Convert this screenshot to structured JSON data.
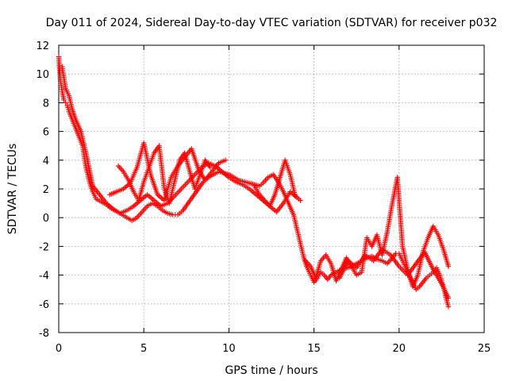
{
  "chart_data": {
    "type": "scatter",
    "title": "Day 011 of 2024, Sidereal Day-to-day VTEC variation (SDTVAR) for receiver p032",
    "xlabel": "GPS time / hours",
    "ylabel": "SDTVAR / TECUs",
    "xlim": [
      0,
      25
    ],
    "ylim": [
      -8,
      12
    ],
    "xticks": [
      0,
      5,
      10,
      15,
      20,
      25
    ],
    "yticks": [
      -8,
      -6,
      -4,
      -2,
      0,
      2,
      4,
      6,
      8,
      10,
      12
    ],
    "grid": true,
    "marker": "+",
    "series": [
      {
        "name": "main",
        "color": "#ff0000",
        "x": [
          0.0,
          0.1,
          0.2,
          0.3,
          0.4,
          0.5,
          0.6,
          0.8,
          1.0,
          1.2,
          1.4,
          1.6,
          1.8,
          2.0,
          2.2,
          2.5,
          2.8,
          3.0,
          3.3,
          3.6,
          4.0,
          4.3,
          4.6,
          4.9,
          5.2,
          5.5,
          5.8,
          6.1,
          6.4,
          6.7,
          7.0,
          7.3,
          7.6,
          7.9,
          8.2,
          8.5,
          8.8,
          9.1,
          9.4,
          9.7,
          10.0,
          10.3,
          10.6,
          10.9,
          11.2,
          11.5,
          11.8,
          12.0,
          12.3,
          12.6,
          12.9,
          13.2,
          13.5,
          13.8,
          14.0,
          14.2,
          14.4,
          14.6,
          14.8,
          15.0,
          15.2,
          15.4,
          15.6,
          15.8,
          16.0,
          16.3,
          16.6,
          16.9,
          17.2,
          17.5,
          17.8,
          18.1,
          18.4,
          18.7,
          19.0,
          19.3,
          19.6,
          19.8,
          20.0,
          20.2,
          20.4,
          20.6,
          20.8,
          21.0,
          21.2,
          21.4,
          21.6,
          21.8,
          22.0,
          22.2,
          22.4,
          22.6,
          22.8,
          22.9
        ],
        "y": [
          11.2,
          9.5,
          8.8,
          8.2,
          8.0,
          7.8,
          7.4,
          6.8,
          6.2,
          5.6,
          5.0,
          3.5,
          2.5,
          1.8,
          1.3,
          1.1,
          0.9,
          0.7,
          0.5,
          0.3,
          0.0,
          -0.2,
          0.0,
          0.4,
          0.8,
          1.0,
          0.8,
          0.5,
          0.3,
          0.2,
          0.2,
          0.5,
          1.0,
          1.5,
          2.0,
          2.5,
          2.8,
          3.0,
          3.2,
          3.1,
          3.0,
          2.8,
          2.6,
          2.5,
          2.4,
          2.3,
          2.2,
          2.4,
          2.8,
          3.0,
          2.5,
          1.8,
          1.0,
          0.2,
          -0.8,
          -1.8,
          -2.8,
          -3.5,
          -4.0,
          -4.5,
          -4.2,
          -3.8,
          -4.0,
          -4.3,
          -4.0,
          -3.8,
          -3.6,
          -3.5,
          -3.4,
          -3.2,
          -3.0,
          -2.8,
          -2.7,
          -2.9,
          -3.0,
          -3.2,
          -2.8,
          -2.5,
          -2.5,
          -3.0,
          -3.5,
          -4.0,
          -4.5,
          -5.0,
          -4.8,
          -4.5,
          -4.2,
          -4.0,
          -3.8,
          -3.5,
          -4.0,
          -4.8,
          -5.8,
          -6.2
        ]
      },
      {
        "name": "branch-a",
        "color": "#ff0000",
        "x": [
          0.2,
          0.4,
          0.6,
          0.8,
          1.0,
          1.3,
          1.6,
          2.0,
          2.4,
          2.8,
          3.2,
          3.6,
          4.0,
          4.4,
          4.8,
          5.2,
          5.6,
          6.0,
          6.4,
          6.8,
          7.2,
          7.6,
          8.0,
          8.4,
          8.8,
          9.2,
          9.6,
          10.0,
          10.4,
          10.8,
          11.2,
          11.6,
          12.0,
          12.4,
          12.8,
          13.2,
          13.6,
          14.0
        ],
        "y": [
          10.5,
          9.0,
          8.5,
          7.5,
          6.8,
          6.0,
          4.5,
          2.2,
          1.6,
          1.0,
          0.6,
          0.3,
          0.5,
          0.8,
          1.2,
          1.6,
          1.2,
          0.8,
          1.0,
          1.5,
          2.0,
          2.5,
          3.0,
          3.5,
          3.8,
          3.6,
          3.2,
          2.8,
          2.5,
          2.3,
          2.0,
          1.6,
          1.2,
          0.8,
          0.4,
          1.0,
          1.8,
          1.4
        ]
      },
      {
        "name": "branch-b",
        "color": "#ff0000",
        "x": [
          3.5,
          3.8,
          4.1,
          4.4,
          4.7,
          5.0,
          5.3,
          5.6,
          5.9,
          6.2,
          6.5,
          6.8,
          7.1,
          7.4,
          7.7,
          8.0,
          8.3,
          8.6,
          8.9
        ],
        "y": [
          3.6,
          3.2,
          2.6,
          1.8,
          1.2,
          2.5,
          3.5,
          4.5,
          5.0,
          2.0,
          1.0,
          2.5,
          4.0,
          4.5,
          3.2,
          2.0,
          3.0,
          4.0,
          3.5
        ]
      },
      {
        "name": "branch-c",
        "color": "#ff0000",
        "x": [
          3.0,
          3.4,
          3.8,
          4.2,
          4.6,
          5.0,
          5.4,
          5.8,
          6.2,
          6.6,
          7.0,
          7.4,
          7.8,
          8.2,
          8.6,
          9.0,
          9.4,
          9.8
        ],
        "y": [
          1.6,
          1.8,
          2.0,
          2.4,
          3.5,
          5.2,
          3.0,
          1.6,
          1.2,
          2.8,
          3.6,
          4.2,
          4.8,
          3.4,
          2.6,
          3.2,
          3.8,
          4.0
        ]
      },
      {
        "name": "branch-d",
        "color": "#ff0000",
        "x": [
          11.5,
          11.8,
          12.1,
          12.4,
          12.7,
          13.0,
          13.3,
          13.6,
          13.9,
          14.2
        ],
        "y": [
          2.2,
          1.6,
          1.2,
          0.8,
          1.6,
          2.8,
          4.0,
          3.0,
          1.5,
          1.2
        ]
      },
      {
        "name": "branch-e",
        "color": "#ff0000",
        "x": [
          14.5,
          14.8,
          15.1,
          15.4,
          15.7,
          16.0,
          16.3,
          16.6,
          16.9,
          17.2,
          17.5,
          17.8,
          18.1,
          18.4,
          18.7,
          19.0,
          19.3,
          19.6,
          19.9,
          20.2,
          20.5,
          20.8,
          21.1,
          21.4,
          21.7,
          22.0,
          22.3,
          22.6,
          22.9
        ],
        "y": [
          -3.0,
          -3.4,
          -4.2,
          -3.0,
          -2.6,
          -3.2,
          -4.4,
          -3.6,
          -2.8,
          -3.4,
          -4.0,
          -3.8,
          -1.4,
          -2.0,
          -1.2,
          -2.6,
          -1.0,
          1.0,
          2.8,
          -2.0,
          -3.6,
          -4.8,
          -4.0,
          -2.4,
          -1.4,
          -0.6,
          -1.2,
          -2.2,
          -3.4
        ]
      },
      {
        "name": "branch-f",
        "color": "#ff0000",
        "x": [
          16.5,
          17.0,
          17.5,
          18.0,
          18.5,
          19.0,
          19.5,
          20.0,
          20.5,
          21.0,
          21.5,
          22.0,
          22.5,
          22.9
        ],
        "y": [
          -4.2,
          -3.0,
          -3.5,
          -2.6,
          -3.0,
          -2.2,
          -2.6,
          -3.4,
          -4.0,
          -3.2,
          -2.4,
          -3.6,
          -4.6,
          -5.6
        ]
      }
    ]
  }
}
